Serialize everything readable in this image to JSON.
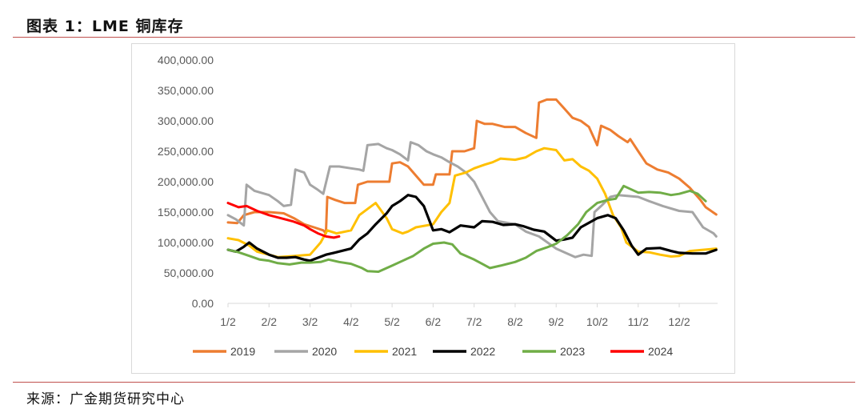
{
  "header": {
    "title": "图表 1：LME 铜库存"
  },
  "footer": {
    "source": "来源：广金期货研究中心"
  },
  "colors": {
    "2019": "#ed7d31",
    "2020": "#a5a5a5",
    "2021": "#ffc000",
    "2022": "#000000",
    "2023": "#70ad47",
    "2024": "#ff0000",
    "rule": "#c0504d",
    "axis": "#d9d9d9",
    "tick_text": "#595959"
  },
  "chart_data": {
    "type": "line",
    "title": "",
    "xlabel": "",
    "ylabel": "",
    "ylim": [
      0,
      400000
    ],
    "y_ticks": [
      0,
      50000,
      100000,
      150000,
      200000,
      250000,
      300000,
      350000,
      400000
    ],
    "y_tick_labels": [
      "0.00",
      "50,000.00",
      "100,000.00",
      "150,000.00",
      "200,000.00",
      "250,000.00",
      "300,000.00",
      "350,000.00",
      "400,000.00"
    ],
    "x_tick_labels": [
      "1/2",
      "2/2",
      "3/2",
      "4/2",
      "5/2",
      "6/2",
      "7/2",
      "8/2",
      "9/2",
      "10/2",
      "11/2",
      "12/2"
    ],
    "grid": false,
    "legend_position": "bottom",
    "series": [
      {
        "name": "2019",
        "points": [
          [
            "1/2",
            133000
          ],
          [
            "1/9",
            132000
          ],
          [
            "1/14",
            145000
          ],
          [
            "1/22",
            150000
          ],
          [
            "2/2",
            150000
          ],
          [
            "2/12",
            148000
          ],
          [
            "2/19",
            140000
          ],
          [
            "2/26",
            130000
          ],
          [
            "3/5",
            125000
          ],
          [
            "3/12",
            120000
          ],
          [
            "3/14",
            115000
          ],
          [
            "3/15",
            175000
          ],
          [
            "3/21",
            170000
          ],
          [
            "3/28",
            165000
          ],
          [
            "4/5",
            165000
          ],
          [
            "4/7",
            195000
          ],
          [
            "4/14",
            200000
          ],
          [
            "4/22",
            200000
          ],
          [
            "4/30",
            200000
          ],
          [
            "5/2",
            230000
          ],
          [
            "5/8",
            232000
          ],
          [
            "5/14",
            225000
          ],
          [
            "5/20",
            210000
          ],
          [
            "5/26",
            195000
          ],
          [
            "6/2",
            195000
          ],
          [
            "6/4",
            212000
          ],
          [
            "6/14",
            212000
          ],
          [
            "6/16",
            250000
          ],
          [
            "6/25",
            250000
          ],
          [
            "7/2",
            255000
          ],
          [
            "7/4",
            300000
          ],
          [
            "7/10",
            295000
          ],
          [
            "7/16",
            295000
          ],
          [
            "7/25",
            290000
          ],
          [
            "8/2",
            290000
          ],
          [
            "8/10",
            280000
          ],
          [
            "8/18",
            272000
          ],
          [
            "8/20",
            330000
          ],
          [
            "8/26",
            335000
          ],
          [
            "9/2",
            335000
          ],
          [
            "9/8",
            320000
          ],
          [
            "9/14",
            305000
          ],
          [
            "9/20",
            300000
          ],
          [
            "9/26",
            290000
          ],
          [
            "10/2",
            260000
          ],
          [
            "10/5",
            292000
          ],
          [
            "10/12",
            285000
          ],
          [
            "10/18",
            275000
          ],
          [
            "10/25",
            265000
          ],
          [
            "10/27",
            270000
          ],
          [
            "11/2",
            250000
          ],
          [
            "11/8",
            230000
          ],
          [
            "11/16",
            220000
          ],
          [
            "11/24",
            215000
          ],
          [
            "12/2",
            205000
          ],
          [
            "12/10",
            190000
          ],
          [
            "12/18",
            170000
          ],
          [
            "12/22",
            158000
          ],
          [
            "12/30",
            146000
          ]
        ]
      },
      {
        "name": "2020",
        "points": [
          [
            "1/2",
            145000
          ],
          [
            "1/8",
            138000
          ],
          [
            "1/14",
            128000
          ],
          [
            "1/16",
            195000
          ],
          [
            "1/22",
            185000
          ],
          [
            "2/2",
            178000
          ],
          [
            "2/8",
            168000
          ],
          [
            "2/12",
            160000
          ],
          [
            "2/17",
            162000
          ],
          [
            "2/20",
            220000
          ],
          [
            "2/26",
            215000
          ],
          [
            "3/2",
            195000
          ],
          [
            "3/7",
            188000
          ],
          [
            "3/12",
            180000
          ],
          [
            "3/17",
            225000
          ],
          [
            "3/24",
            225000
          ],
          [
            "4/2",
            222000
          ],
          [
            "4/8",
            220000
          ],
          [
            "4/11",
            218000
          ],
          [
            "4/14",
            260000
          ],
          [
            "4/22",
            262000
          ],
          [
            "4/28",
            255000
          ],
          [
            "5/2",
            252000
          ],
          [
            "5/8",
            245000
          ],
          [
            "5/14",
            235000
          ],
          [
            "5/16",
            265000
          ],
          [
            "5/22",
            260000
          ],
          [
            "5/28",
            250000
          ],
          [
            "6/2",
            245000
          ],
          [
            "6/8",
            240000
          ],
          [
            "6/14",
            232000
          ],
          [
            "6/20",
            225000
          ],
          [
            "6/26",
            215000
          ],
          [
            "7/2",
            200000
          ],
          [
            "7/8",
            175000
          ],
          [
            "7/14",
            150000
          ],
          [
            "7/20",
            135000
          ],
          [
            "8/2",
            130000
          ],
          [
            "8/10",
            118000
          ],
          [
            "8/20",
            110000
          ],
          [
            "9/2",
            90000
          ],
          [
            "9/10",
            82000
          ],
          [
            "9/16",
            76000
          ],
          [
            "9/22",
            80000
          ],
          [
            "9/28",
            78000
          ],
          [
            "9/30",
            150000
          ],
          [
            "10/5",
            160000
          ],
          [
            "10/12",
            175000
          ],
          [
            "10/18",
            178000
          ],
          [
            "11/2",
            175000
          ],
          [
            "11/10",
            168000
          ],
          [
            "11/20",
            160000
          ],
          [
            "12/2",
            152000
          ],
          [
            "12/12",
            150000
          ],
          [
            "12/20",
            125000
          ],
          [
            "12/28",
            115000
          ],
          [
            "12/30",
            110000
          ]
        ]
      },
      {
        "name": "2021",
        "points": [
          [
            "1/2",
            107000
          ],
          [
            "1/10",
            104000
          ],
          [
            "1/18",
            95000
          ],
          [
            "1/24",
            85000
          ],
          [
            "2/2",
            80000
          ],
          [
            "2/8",
            76000
          ],
          [
            "2/14",
            77000
          ],
          [
            "2/20",
            78000
          ],
          [
            "3/2",
            80000
          ],
          [
            "3/10",
            100000
          ],
          [
            "3/15",
            120000
          ],
          [
            "3/22",
            115000
          ],
          [
            "4/2",
            120000
          ],
          [
            "4/8",
            145000
          ],
          [
            "4/14",
            155000
          ],
          [
            "4/20",
            165000
          ],
          [
            "4/28",
            140000
          ],
          [
            "5/2",
            122000
          ],
          [
            "5/10",
            115000
          ],
          [
            "5/14",
            118000
          ],
          [
            "5/20",
            125000
          ],
          [
            "6/2",
            130000
          ],
          [
            "6/8",
            150000
          ],
          [
            "6/14",
            165000
          ],
          [
            "6/18",
            210000
          ],
          [
            "6/26",
            215000
          ],
          [
            "7/2",
            222000
          ],
          [
            "7/10",
            228000
          ],
          [
            "7/16",
            232000
          ],
          [
            "7/22",
            238000
          ],
          [
            "8/2",
            236000
          ],
          [
            "8/10",
            240000
          ],
          [
            "8/18",
            250000
          ],
          [
            "8/24",
            255000
          ],
          [
            "9/2",
            252000
          ],
          [
            "9/8",
            235000
          ],
          [
            "9/14",
            237000
          ],
          [
            "9/20",
            225000
          ],
          [
            "9/26",
            218000
          ],
          [
            "10/2",
            205000
          ],
          [
            "10/8",
            180000
          ],
          [
            "10/14",
            145000
          ],
          [
            "10/20",
            125000
          ],
          [
            "10/24",
            100000
          ],
          [
            "11/2",
            85000
          ],
          [
            "11/10",
            84000
          ],
          [
            "11/18",
            80000
          ],
          [
            "11/26",
            77000
          ],
          [
            "12/2",
            78000
          ],
          [
            "12/10",
            86000
          ],
          [
            "12/20",
            88000
          ],
          [
            "12/30",
            90000
          ]
        ]
      },
      {
        "name": "2022",
        "points": [
          [
            "1/2",
            88000
          ],
          [
            "1/8",
            85000
          ],
          [
            "1/14",
            93000
          ],
          [
            "1/18",
            100000
          ],
          [
            "1/24",
            90000
          ],
          [
            "2/2",
            80000
          ],
          [
            "2/8",
            75000
          ],
          [
            "2/14",
            75000
          ],
          [
            "2/20",
            76000
          ],
          [
            "2/26",
            72000
          ],
          [
            "3/2",
            70000
          ],
          [
            "3/8",
            75000
          ],
          [
            "3/14",
            80000
          ],
          [
            "3/20",
            83000
          ],
          [
            "4/2",
            90000
          ],
          [
            "4/8",
            105000
          ],
          [
            "4/14",
            115000
          ],
          [
            "4/20",
            130000
          ],
          [
            "4/28",
            148000
          ],
          [
            "5/2",
            160000
          ],
          [
            "5/8",
            168000
          ],
          [
            "5/14",
            178000
          ],
          [
            "5/20",
            175000
          ],
          [
            "5/26",
            160000
          ],
          [
            "6/2",
            120000
          ],
          [
            "6/8",
            122000
          ],
          [
            "6/14",
            117000
          ],
          [
            "6/22",
            128000
          ],
          [
            "7/2",
            125000
          ],
          [
            "7/8",
            135000
          ],
          [
            "7/16",
            134000
          ],
          [
            "7/24",
            129000
          ],
          [
            "8/2",
            130000
          ],
          [
            "8/8",
            127000
          ],
          [
            "8/16",
            121000
          ],
          [
            "8/24",
            118000
          ],
          [
            "9/2",
            103000
          ],
          [
            "9/8",
            105000
          ],
          [
            "9/14",
            108000
          ],
          [
            "9/20",
            125000
          ],
          [
            "10/2",
            140000
          ],
          [
            "10/10",
            145000
          ],
          [
            "10/16",
            140000
          ],
          [
            "10/22",
            120000
          ],
          [
            "10/28",
            95000
          ],
          [
            "11/2",
            80000
          ],
          [
            "11/8",
            90000
          ],
          [
            "11/18",
            91000
          ],
          [
            "11/26",
            86000
          ],
          [
            "12/2",
            83000
          ],
          [
            "12/12",
            82000
          ],
          [
            "12/22",
            82000
          ],
          [
            "12/30",
            88000
          ]
        ]
      },
      {
        "name": "2023",
        "points": [
          [
            "1/2",
            88000
          ],
          [
            "1/10",
            84000
          ],
          [
            "1/18",
            78000
          ],
          [
            "1/26",
            72000
          ],
          [
            "2/2",
            70000
          ],
          [
            "2/8",
            66000
          ],
          [
            "2/16",
            64000
          ],
          [
            "2/24",
            67000
          ],
          [
            "3/2",
            67000
          ],
          [
            "3/10",
            68000
          ],
          [
            "3/16",
            72000
          ],
          [
            "3/24",
            68000
          ],
          [
            "4/2",
            65000
          ],
          [
            "4/10",
            58000
          ],
          [
            "4/14",
            53000
          ],
          [
            "4/22",
            52000
          ],
          [
            "5/2",
            62000
          ],
          [
            "5/10",
            70000
          ],
          [
            "5/18",
            78000
          ],
          [
            "5/26",
            90000
          ],
          [
            "6/2",
            98000
          ],
          [
            "6/10",
            100000
          ],
          [
            "6/16",
            97000
          ],
          [
            "6/22",
            82000
          ],
          [
            "7/2",
            72000
          ],
          [
            "7/8",
            65000
          ],
          [
            "7/14",
            58000
          ],
          [
            "7/22",
            62000
          ],
          [
            "8/2",
            68000
          ],
          [
            "8/10",
            75000
          ],
          [
            "8/18",
            86000
          ],
          [
            "8/26",
            92000
          ],
          [
            "9/2",
            98000
          ],
          [
            "9/10",
            112000
          ],
          [
            "9/18",
            130000
          ],
          [
            "9/24",
            150000
          ],
          [
            "10/2",
            165000
          ],
          [
            "10/10",
            170000
          ],
          [
            "10/16",
            172000
          ],
          [
            "10/22",
            193000
          ],
          [
            "11/2",
            182000
          ],
          [
            "11/10",
            183000
          ],
          [
            "11/18",
            182000
          ],
          [
            "11/26",
            178000
          ],
          [
            "12/2",
            180000
          ],
          [
            "12/10",
            185000
          ],
          [
            "12/16",
            180000
          ],
          [
            "12/22",
            168000
          ]
        ]
      },
      {
        "name": "2024",
        "points": [
          [
            "1/2",
            165000
          ],
          [
            "1/10",
            158000
          ],
          [
            "1/16",
            160000
          ],
          [
            "1/24",
            152000
          ],
          [
            "2/2",
            145000
          ],
          [
            "2/10",
            140000
          ],
          [
            "2/18",
            135000
          ],
          [
            "2/26",
            128000
          ],
          [
            "3/2",
            122000
          ],
          [
            "3/8",
            115000
          ],
          [
            "3/14",
            110000
          ],
          [
            "3/20",
            108000
          ],
          [
            "3/24",
            110000
          ]
        ]
      }
    ]
  }
}
